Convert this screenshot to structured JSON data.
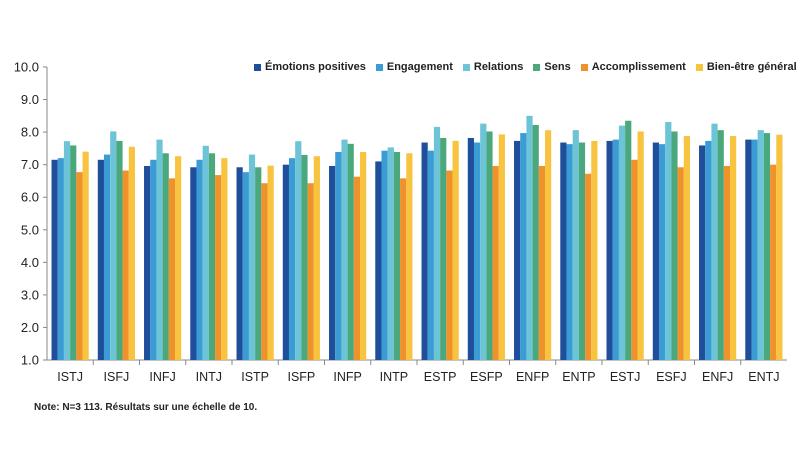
{
  "chart_data": {
    "type": "bar",
    "categories": [
      "ISTJ",
      "ISFJ",
      "INFJ",
      "INTJ",
      "ISTP",
      "ISFP",
      "INFP",
      "INTP",
      "ESTP",
      "ESFP",
      "ENFP",
      "ENTP",
      "ESTJ",
      "ESFJ",
      "ENFJ",
      "ENTJ"
    ],
    "series": [
      {
        "name": "Émotions positives",
        "color": "#1f4e9a",
        "values": [
          7.15,
          7.15,
          6.96,
          6.92,
          6.92,
          7.0,
          6.96,
          7.1,
          7.68,
          7.82,
          7.73,
          7.68,
          7.73,
          7.68,
          7.59,
          7.77
        ]
      },
      {
        "name": "Engagement",
        "color": "#3a9bd5",
        "values": [
          7.2,
          7.31,
          7.15,
          7.15,
          6.77,
          7.2,
          7.39,
          7.43,
          7.43,
          7.68,
          7.97,
          7.63,
          7.77,
          7.63,
          7.73,
          7.77
        ]
      },
      {
        "name": "Relations",
        "color": "#6cc4d6",
        "values": [
          7.72,
          8.02,
          7.77,
          7.58,
          7.31,
          7.72,
          7.77,
          7.53,
          8.16,
          8.26,
          8.5,
          8.06,
          8.2,
          8.31,
          8.26,
          8.06
        ]
      },
      {
        "name": "Sens",
        "color": "#4aa87c",
        "values": [
          7.59,
          7.73,
          7.35,
          7.35,
          6.92,
          7.3,
          7.64,
          7.39,
          7.82,
          8.02,
          8.22,
          7.68,
          8.35,
          8.02,
          8.06,
          7.97
        ]
      },
      {
        "name": "Accomplissement",
        "color": "#ef922c",
        "values": [
          6.77,
          6.82,
          6.58,
          6.68,
          6.43,
          6.43,
          6.63,
          6.58,
          6.82,
          6.96,
          6.96,
          6.72,
          7.15,
          6.92,
          6.96,
          7.0
        ]
      },
      {
        "name": "Bien-être général",
        "color": "#f8c440",
        "values": [
          7.4,
          7.55,
          7.26,
          7.2,
          6.97,
          7.26,
          7.39,
          7.35,
          7.73,
          7.93,
          8.06,
          7.73,
          8.02,
          7.88,
          7.88,
          7.92
        ]
      }
    ],
    "ylim": [
      1.0,
      10.0
    ],
    "yticks": [
      "1.0",
      "2.0",
      "3.0",
      "4.0",
      "5.0",
      "6.0",
      "7.0",
      "8.0",
      "9.0",
      "10.0"
    ],
    "grid": false,
    "legend": "top-right",
    "xlabel": "",
    "ylabel": "",
    "note": "Note: N=3 113. Résultats sur une échelle de 10."
  }
}
